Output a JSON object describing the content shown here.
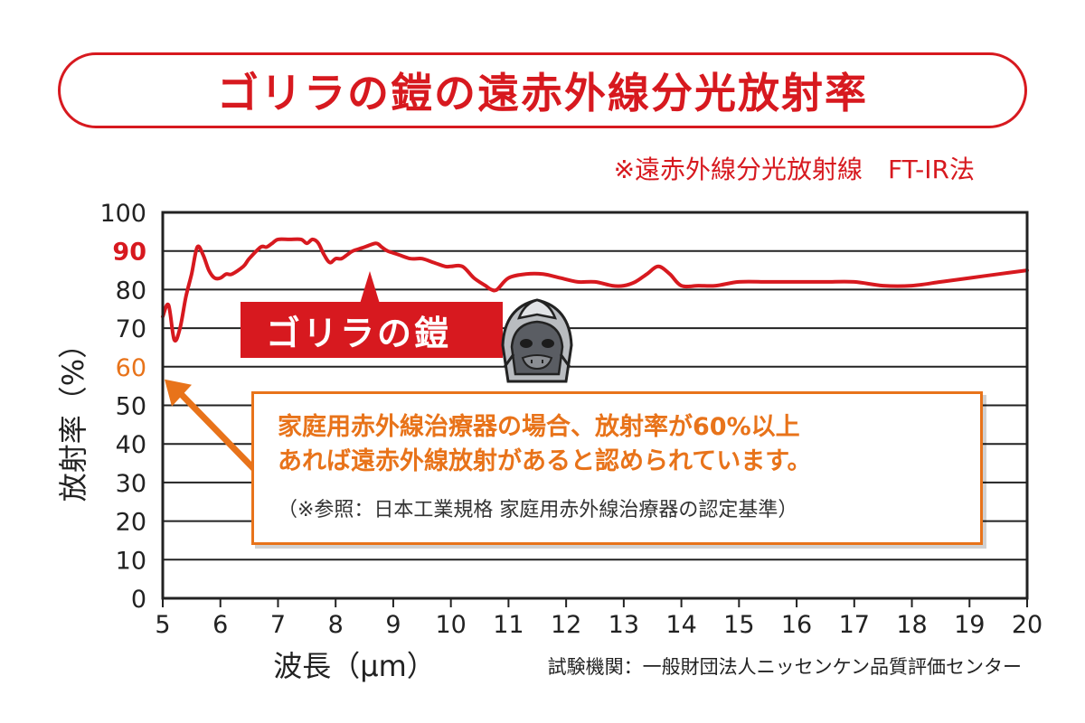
{
  "title": "ゴリラの鎧の遠赤外線分光放射率",
  "subtitle": "※遠赤外線分光放射線　FT-IR法",
  "source": "試験機関：一般財団法人ニッセンケン品質評価センター",
  "series_tag": "ゴリラの鎧",
  "note": {
    "line1": "家庭用赤外線治療器の場合、放射率が60%以上",
    "line2": "あれば遠赤外線放射があると認められています。",
    "reference": "（※参照：日本工業規格 家庭用赤外線治療器の認定基準）"
  },
  "colors": {
    "accent": "#d7191f",
    "note": "#e8731a",
    "grid": "#222222"
  },
  "chart_data": {
    "type": "line",
    "xlabel": "波長（μm）",
    "ylabel": "放射率（%）",
    "xlim": [
      5,
      20
    ],
    "ylim": [
      0,
      100
    ],
    "x_ticks": [
      "5",
      "6",
      "7",
      "8",
      "9",
      "10",
      "11",
      "12",
      "13",
      "14",
      "15",
      "16",
      "17",
      "18",
      "19",
      "20"
    ],
    "y_ticks": [
      "0",
      "10",
      "20",
      "30",
      "40",
      "50",
      "60",
      "70",
      "80",
      "90",
      "100"
    ],
    "highlighted_ticks": {
      "90": "bold-red",
      "60": "orange"
    },
    "grid": "horizontal",
    "series": [
      {
        "name": "ゴリラの鎧",
        "color": "#d7191f",
        "x": [
          5.0,
          5.1,
          5.2,
          5.3,
          5.4,
          5.5,
          5.6,
          5.7,
          5.8,
          5.9,
          6.0,
          6.1,
          6.2,
          6.4,
          6.5,
          6.7,
          6.8,
          6.9,
          7.0,
          7.2,
          7.4,
          7.5,
          7.6,
          7.7,
          7.8,
          7.9,
          8.0,
          8.1,
          8.2,
          8.3,
          8.5,
          8.7,
          8.8,
          8.9,
          9.1,
          9.3,
          9.5,
          9.7,
          9.9,
          10.0,
          10.2,
          10.4,
          10.6,
          10.7,
          10.8,
          11.0,
          11.3,
          11.6,
          11.9,
          12.2,
          12.5,
          12.8,
          13.0,
          13.2,
          13.4,
          13.6,
          13.8,
          14.0,
          14.3,
          14.6,
          15.0,
          15.5,
          16.0,
          16.5,
          17.0,
          17.5,
          18.0,
          18.5,
          19.0,
          19.5,
          20.0
        ],
        "values": [
          73,
          76,
          67,
          70,
          78,
          84,
          91,
          89,
          85,
          83,
          83,
          84,
          84,
          86,
          88,
          91,
          91,
          92,
          93,
          93,
          93,
          92,
          93,
          92,
          89,
          87,
          88,
          88,
          89,
          90,
          91,
          92,
          91,
          90,
          89,
          88,
          88,
          87,
          86,
          86,
          86,
          83,
          81,
          80,
          80,
          83,
          84,
          84,
          83,
          82,
          82,
          81,
          81,
          82,
          84,
          86,
          84,
          81,
          81,
          81,
          82,
          82,
          82,
          82,
          82,
          81,
          81,
          82,
          83,
          84,
          85
        ]
      }
    ]
  }
}
